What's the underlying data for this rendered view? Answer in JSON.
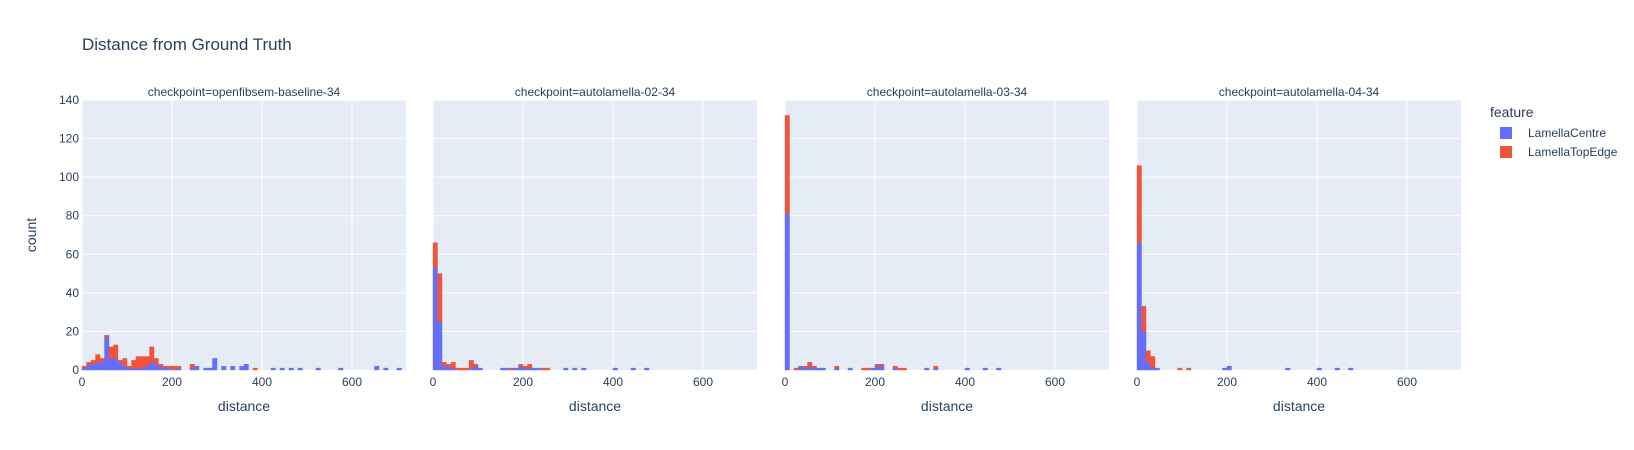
{
  "chart_data": {
    "type": "bar",
    "stacked": true,
    "title": "Distance from Ground Truth",
    "ylabel": "count",
    "xlabel": "distance",
    "xlim": [
      0,
      720
    ],
    "ylim": [
      0,
      140
    ],
    "x_ticks": [
      0,
      200,
      400,
      600
    ],
    "y_ticks": [
      0,
      20,
      40,
      60,
      80,
      100,
      120,
      140
    ],
    "bin_width": 10,
    "grid": true,
    "legend": {
      "title": "feature",
      "position": "right",
      "entries": [
        {
          "name": "LamellaCentre",
          "color": "#636efa"
        },
        {
          "name": "LamellaTopEdge",
          "color": "#ef553b"
        }
      ]
    },
    "facets": [
      {
        "label": "checkpoint=openfibsem-baseline-34",
        "bins": [
          [
            0,
            1,
            1
          ],
          [
            10,
            3,
            1
          ],
          [
            20,
            3,
            2
          ],
          [
            30,
            4,
            4
          ],
          [
            40,
            4,
            2
          ],
          [
            50,
            17,
            1
          ],
          [
            60,
            6,
            6
          ],
          [
            70,
            6,
            7
          ],
          [
            80,
            4,
            1
          ],
          [
            90,
            2,
            4
          ],
          [
            100,
            1,
            1
          ],
          [
            110,
            1,
            4
          ],
          [
            120,
            1,
            6
          ],
          [
            130,
            1,
            6
          ],
          [
            140,
            2,
            5
          ],
          [
            150,
            4,
            8
          ],
          [
            160,
            3,
            3
          ],
          [
            170,
            2,
            1
          ],
          [
            180,
            1,
            1
          ],
          [
            190,
            1,
            1
          ],
          [
            200,
            0,
            2
          ],
          [
            210,
            1,
            1
          ],
          [
            240,
            1,
            2
          ],
          [
            250,
            2,
            0
          ],
          [
            270,
            1,
            0
          ],
          [
            280,
            1,
            0
          ],
          [
            290,
            6,
            0
          ],
          [
            310,
            2,
            0
          ],
          [
            330,
            2,
            0
          ],
          [
            350,
            2,
            0
          ],
          [
            360,
            3,
            0
          ],
          [
            380,
            0,
            1
          ],
          [
            420,
            1,
            0
          ],
          [
            440,
            1,
            0
          ],
          [
            460,
            1,
            0
          ],
          [
            480,
            1,
            0
          ],
          [
            520,
            1,
            0
          ],
          [
            570,
            1,
            0
          ],
          [
            650,
            2,
            0
          ],
          [
            670,
            1,
            0
          ],
          [
            700,
            1,
            0
          ]
        ]
      },
      {
        "label": "checkpoint=autolamella-02-34",
        "bins": [
          [
            0,
            53,
            13
          ],
          [
            10,
            25,
            25
          ],
          [
            20,
            2,
            2
          ],
          [
            30,
            2,
            1
          ],
          [
            40,
            1,
            3
          ],
          [
            50,
            0,
            1
          ],
          [
            60,
            0,
            1
          ],
          [
            70,
            0,
            1
          ],
          [
            80,
            1,
            4
          ],
          [
            90,
            2,
            1
          ],
          [
            100,
            1,
            0
          ],
          [
            150,
            1,
            0
          ],
          [
            160,
            1,
            0
          ],
          [
            170,
            0,
            1
          ],
          [
            180,
            1,
            0
          ],
          [
            190,
            2,
            1
          ],
          [
            200,
            1,
            1
          ],
          [
            210,
            1,
            2
          ],
          [
            220,
            1,
            0
          ],
          [
            230,
            1,
            0
          ],
          [
            240,
            0,
            1
          ],
          [
            250,
            0,
            1
          ],
          [
            290,
            1,
            0
          ],
          [
            310,
            1,
            0
          ],
          [
            330,
            1,
            0
          ],
          [
            400,
            1,
            0
          ],
          [
            440,
            1,
            0
          ],
          [
            470,
            1,
            0
          ]
        ]
      },
      {
        "label": "checkpoint=autolamella-03-34",
        "bins": [
          [
            0,
            81,
            51
          ],
          [
            20,
            0,
            1
          ],
          [
            30,
            2,
            0
          ],
          [
            40,
            1,
            1
          ],
          [
            50,
            2,
            2
          ],
          [
            60,
            1,
            1
          ],
          [
            70,
            1,
            0
          ],
          [
            80,
            1,
            0
          ],
          [
            110,
            1,
            1
          ],
          [
            140,
            1,
            0
          ],
          [
            170,
            0,
            1
          ],
          [
            180,
            0,
            1
          ],
          [
            190,
            1,
            0
          ],
          [
            200,
            2,
            1
          ],
          [
            210,
            2,
            1
          ],
          [
            240,
            1,
            1
          ],
          [
            250,
            0,
            1
          ],
          [
            260,
            0,
            1
          ],
          [
            310,
            1,
            0
          ],
          [
            330,
            1,
            1
          ],
          [
            400,
            1,
            0
          ],
          [
            440,
            1,
            0
          ],
          [
            470,
            1,
            0
          ]
        ]
      },
      {
        "label": "checkpoint=autolamella-04-34",
        "bins": [
          [
            0,
            66,
            40
          ],
          [
            10,
            20,
            13
          ],
          [
            20,
            4,
            6
          ],
          [
            30,
            1,
            6
          ],
          [
            40,
            1,
            0
          ],
          [
            90,
            0,
            1
          ],
          [
            110,
            0,
            1
          ],
          [
            190,
            1,
            0
          ],
          [
            200,
            2,
            0
          ],
          [
            330,
            1,
            0
          ],
          [
            400,
            1,
            0
          ],
          [
            440,
            1,
            0
          ],
          [
            470,
            1,
            0
          ]
        ]
      }
    ]
  }
}
